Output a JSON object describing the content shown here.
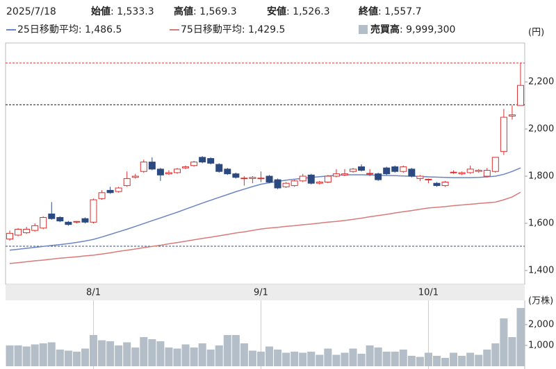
{
  "chart_data": {
    "type": "candlestick",
    "header": {
      "date": "2025/7/18",
      "fields": [
        {
          "label": "始値",
          "value": ": 1,533.3"
        },
        {
          "label": "高値",
          "value": ": 1,569.3"
        },
        {
          "label": "安値",
          "value": ": 1,526.3"
        },
        {
          "label": "終値",
          "value": ": 1,557.7"
        }
      ]
    },
    "y_unit": "(円)",
    "categories": [
      null,
      null,
      null,
      null,
      null,
      null,
      null,
      null,
      null,
      null,
      "8/1",
      null,
      null,
      null,
      null,
      null,
      null,
      null,
      null,
      null,
      null,
      null,
      null,
      null,
      null,
      null,
      null,
      null,
      null,
      null,
      "9/1",
      null,
      null,
      null,
      null,
      null,
      null,
      null,
      null,
      null,
      null,
      null,
      null,
      null,
      null,
      null,
      null,
      null,
      null,
      null,
      "10/1",
      null,
      null,
      null,
      null,
      null,
      null,
      null,
      null,
      null,
      null,
      null
    ],
    "open": [
      1533.3,
      1550,
      1560,
      1570,
      1580,
      1640,
      1625,
      1605,
      1605,
      1620,
      1605,
      1705,
      1740,
      1735,
      1760,
      1795,
      1820,
      1860,
      1830,
      1810,
      1815,
      1835,
      1845,
      1880,
      1875,
      1850,
      1830,
      1810,
      1790,
      1790,
      1790,
      1800,
      1785,
      1755,
      1760,
      1780,
      1805,
      1770,
      1775,
      1800,
      1805,
      1820,
      1840,
      1810,
      1810,
      1835,
      1840,
      1820,
      1830,
      1790,
      1785,
      1770,
      1760,
      1815,
      1810,
      1815,
      1820,
      1800,
      1820,
      1905,
      2055,
      2100
    ],
    "high": [
      1569.3,
      1580,
      1585,
      1600,
      1630,
      1690,
      1630,
      1610,
      1610,
      1625,
      1705,
      1740,
      1755,
      1755,
      1820,
      1810,
      1870,
      1880,
      1835,
      1825,
      1835,
      1845,
      1865,
      1885,
      1880,
      1855,
      1835,
      1815,
      1800,
      1800,
      1820,
      1805,
      1790,
      1775,
      1785,
      1810,
      1810,
      1780,
      1805,
      1830,
      1830,
      1835,
      1850,
      1830,
      1815,
      1840,
      1845,
      1845,
      1835,
      1805,
      1790,
      1775,
      1780,
      1825,
      1820,
      1845,
      1830,
      1835,
      1880,
      2085,
      2100,
      2280
    ],
    "low": [
      1526.3,
      1545,
      1555,
      1565,
      1575,
      1615,
      1605,
      1590,
      1600,
      1600,
      1600,
      1700,
      1725,
      1730,
      1755,
      1790,
      1815,
      1825,
      1780,
      1805,
      1810,
      1830,
      1840,
      1855,
      1850,
      1815,
      1805,
      1790,
      1760,
      1770,
      1775,
      1770,
      1745,
      1750,
      1755,
      1775,
      1765,
      1765,
      1770,
      1795,
      1800,
      1815,
      1820,
      1800,
      1780,
      1805,
      1815,
      1815,
      1795,
      1780,
      1770,
      1755,
      1755,
      1810,
      1805,
      1810,
      1815,
      1795,
      1815,
      1890,
      2040,
      2100
    ],
    "close": [
      1557.7,
      1575,
      1575,
      1590,
      1625,
      1620,
      1610,
      1595,
      1608,
      1605,
      1700,
      1730,
      1730,
      1750,
      1790,
      1800,
      1860,
      1830,
      1805,
      1815,
      1830,
      1840,
      1860,
      1860,
      1855,
      1820,
      1810,
      1795,
      1792,
      1795,
      1792,
      1775,
      1750,
      1770,
      1780,
      1800,
      1770,
      1775,
      1800,
      1810,
      1810,
      1830,
      1825,
      1812,
      1785,
      1810,
      1820,
      1840,
      1800,
      1800,
      1787,
      1760,
      1775,
      1817,
      1815,
      1830,
      1825,
      1825,
      1880,
      2050,
      2060,
      2185
    ],
    "up_color": "#d9302f",
    "down_color": "#2c4a7f",
    "series": [
      {
        "name": "25日移動平均",
        "color": "#6b84c4",
        "legend_value": ": 1,486.5",
        "values": [
          1486.5,
          1490,
          1494,
          1498,
          1502,
          1506,
          1510,
          1514,
          1519,
          1525,
          1532,
          1542,
          1553,
          1564,
          1575,
          1587,
          1599,
          1611,
          1623,
          1635,
          1647,
          1660,
          1673,
          1686,
          1698,
          1710,
          1722,
          1734,
          1745,
          1756,
          1766,
          1772,
          1778,
          1783,
          1787,
          1791,
          1795,
          1798,
          1801,
          1804,
          1806,
          1806,
          1806,
          1805,
          1804,
          1803,
          1802,
          1801,
          1800,
          1799,
          1797,
          1796,
          1795,
          1794,
          1794,
          1794,
          1795,
          1797,
          1800,
          1808,
          1820,
          1835
        ]
      },
      {
        "name": "75日移動平均",
        "color": "#d97a78",
        "legend_value": ": 1,429.5",
        "values": [
          1429.5,
          1433,
          1437,
          1441,
          1444,
          1448,
          1452,
          1455,
          1458,
          1462,
          1465,
          1470,
          1475,
          1481,
          1486,
          1491,
          1497,
          1502,
          1507,
          1513,
          1518,
          1524,
          1530,
          1536,
          1541,
          1547,
          1553,
          1559,
          1564,
          1570,
          1576,
          1580,
          1583,
          1587,
          1590,
          1594,
          1597,
          1601,
          1605,
          1608,
          1612,
          1617,
          1622,
          1628,
          1633,
          1638,
          1644,
          1649,
          1654,
          1660,
          1665,
          1668,
          1671,
          1675,
          1678,
          1681,
          1684,
          1687,
          1690,
          1700,
          1712,
          1732
        ]
      }
    ],
    "reference_lines": [
      {
        "value": 2280,
        "color": "#d9302f"
      },
      {
        "value": 2103,
        "color": "#111111"
      },
      {
        "value": 1503,
        "color": "#2c4a7f"
      }
    ],
    "ylim": [
      1341,
      2365
    ],
    "yticks": [
      {
        "value": 1400,
        "label": "1,400"
      },
      {
        "value": 1600,
        "label": "1,600"
      },
      {
        "value": 1800,
        "label": "1,800"
      },
      {
        "value": 2000,
        "label": "2,000"
      },
      {
        "value": 2200,
        "label": "2,200"
      }
    ],
    "volume": {
      "name": "売買高",
      "color": "#b3bec8",
      "legend_value": ": 9,999,300",
      "unit": "(万株)",
      "values": [
        999.93,
        1000,
        950,
        1050,
        1100,
        1150,
        800,
        750,
        700,
        850,
        1500,
        1250,
        1200,
        1000,
        1150,
        900,
        1400,
        1300,
        1200,
        900,
        850,
        1050,
        900,
        1100,
        800,
        1000,
        1500,
        1500,
        1100,
        750,
        700,
        950,
        800,
        650,
        700,
        650,
        700,
        550,
        850,
        550,
        650,
        850,
        600,
        1000,
        900,
        700,
        700,
        800,
        500,
        450,
        650,
        500,
        400,
        650,
        500,
        650,
        550,
        800,
        1100,
        2300,
        1400,
        2800
      ],
      "ylim": [
        0,
        3170
      ],
      "yticks": [
        {
          "value": 1000,
          "label": "1,000"
        },
        {
          "value": 2000,
          "label": "2,000"
        }
      ]
    }
  }
}
